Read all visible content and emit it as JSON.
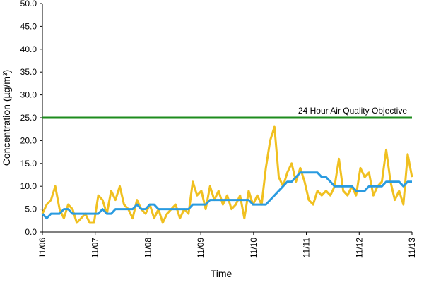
{
  "chart_data": {
    "type": "line",
    "x_title": "Time",
    "y_title": "Concentration (µg/m³)",
    "x_labels": [
      "11/06",
      "11/07",
      "11/08",
      "11/09",
      "11/10",
      "11/11",
      "11/12",
      "11/13"
    ],
    "ylim": [
      0,
      50
    ],
    "yticks": [
      {
        "value": 0,
        "label": "0.0"
      },
      {
        "value": 5,
        "label": "5.0"
      },
      {
        "value": 10,
        "label": "10.0"
      },
      {
        "value": 15,
        "label": "15.0"
      },
      {
        "value": 20,
        "label": "20.0"
      },
      {
        "value": 25,
        "label": "25.0"
      },
      {
        "value": 30,
        "label": "30.0"
      },
      {
        "value": 35,
        "label": "35.0"
      },
      {
        "value": 40,
        "label": "40.0"
      },
      {
        "value": 45,
        "label": "45.0"
      },
      {
        "value": 50,
        "label": "50.0"
      }
    ],
    "reference_line": {
      "value": 25,
      "label": "24 Hour Air Quality Objective",
      "color": "#1e8c1e"
    },
    "series": [
      {
        "color": "#f0c020",
        "values": [
          4,
          6,
          7,
          10,
          5,
          3,
          6,
          5,
          2,
          3,
          4,
          2,
          2,
          8,
          7,
          4,
          9,
          7,
          10,
          6,
          5,
          3,
          7,
          5,
          4,
          6,
          3,
          5,
          2,
          4,
          5,
          6,
          3,
          5,
          4,
          11,
          8,
          9,
          5,
          10,
          7,
          9,
          6,
          8,
          5,
          6,
          8,
          3,
          9,
          6,
          8,
          6,
          14,
          20,
          23,
          12,
          10,
          13,
          15,
          11,
          14,
          11,
          7,
          6,
          9,
          8,
          9,
          8,
          10,
          16,
          9,
          8,
          10,
          8,
          14,
          12,
          13,
          8,
          10,
          11,
          18,
          11,
          7,
          9,
          6,
          17,
          12
        ]
      },
      {
        "color": "#2a9be0",
        "values": [
          4,
          3,
          4,
          4,
          4,
          5,
          5,
          4,
          4,
          4,
          4,
          4,
          4,
          4,
          5,
          4,
          4,
          5,
          5,
          5,
          5,
          5,
          6,
          5,
          5,
          6,
          6,
          5,
          5,
          5,
          5,
          5,
          5,
          5,
          5,
          6,
          6,
          6,
          6,
          7,
          7,
          7,
          7,
          7,
          7,
          7,
          7,
          7,
          7,
          6,
          6,
          6,
          6,
          7,
          8,
          9,
          10,
          11,
          11,
          12,
          13,
          13,
          13,
          13,
          13,
          12,
          12,
          11,
          10,
          10,
          10,
          10,
          10,
          9,
          9,
          9,
          10,
          10,
          10,
          10,
          11,
          11,
          11,
          11,
          10,
          11,
          11
        ]
      }
    ]
  }
}
